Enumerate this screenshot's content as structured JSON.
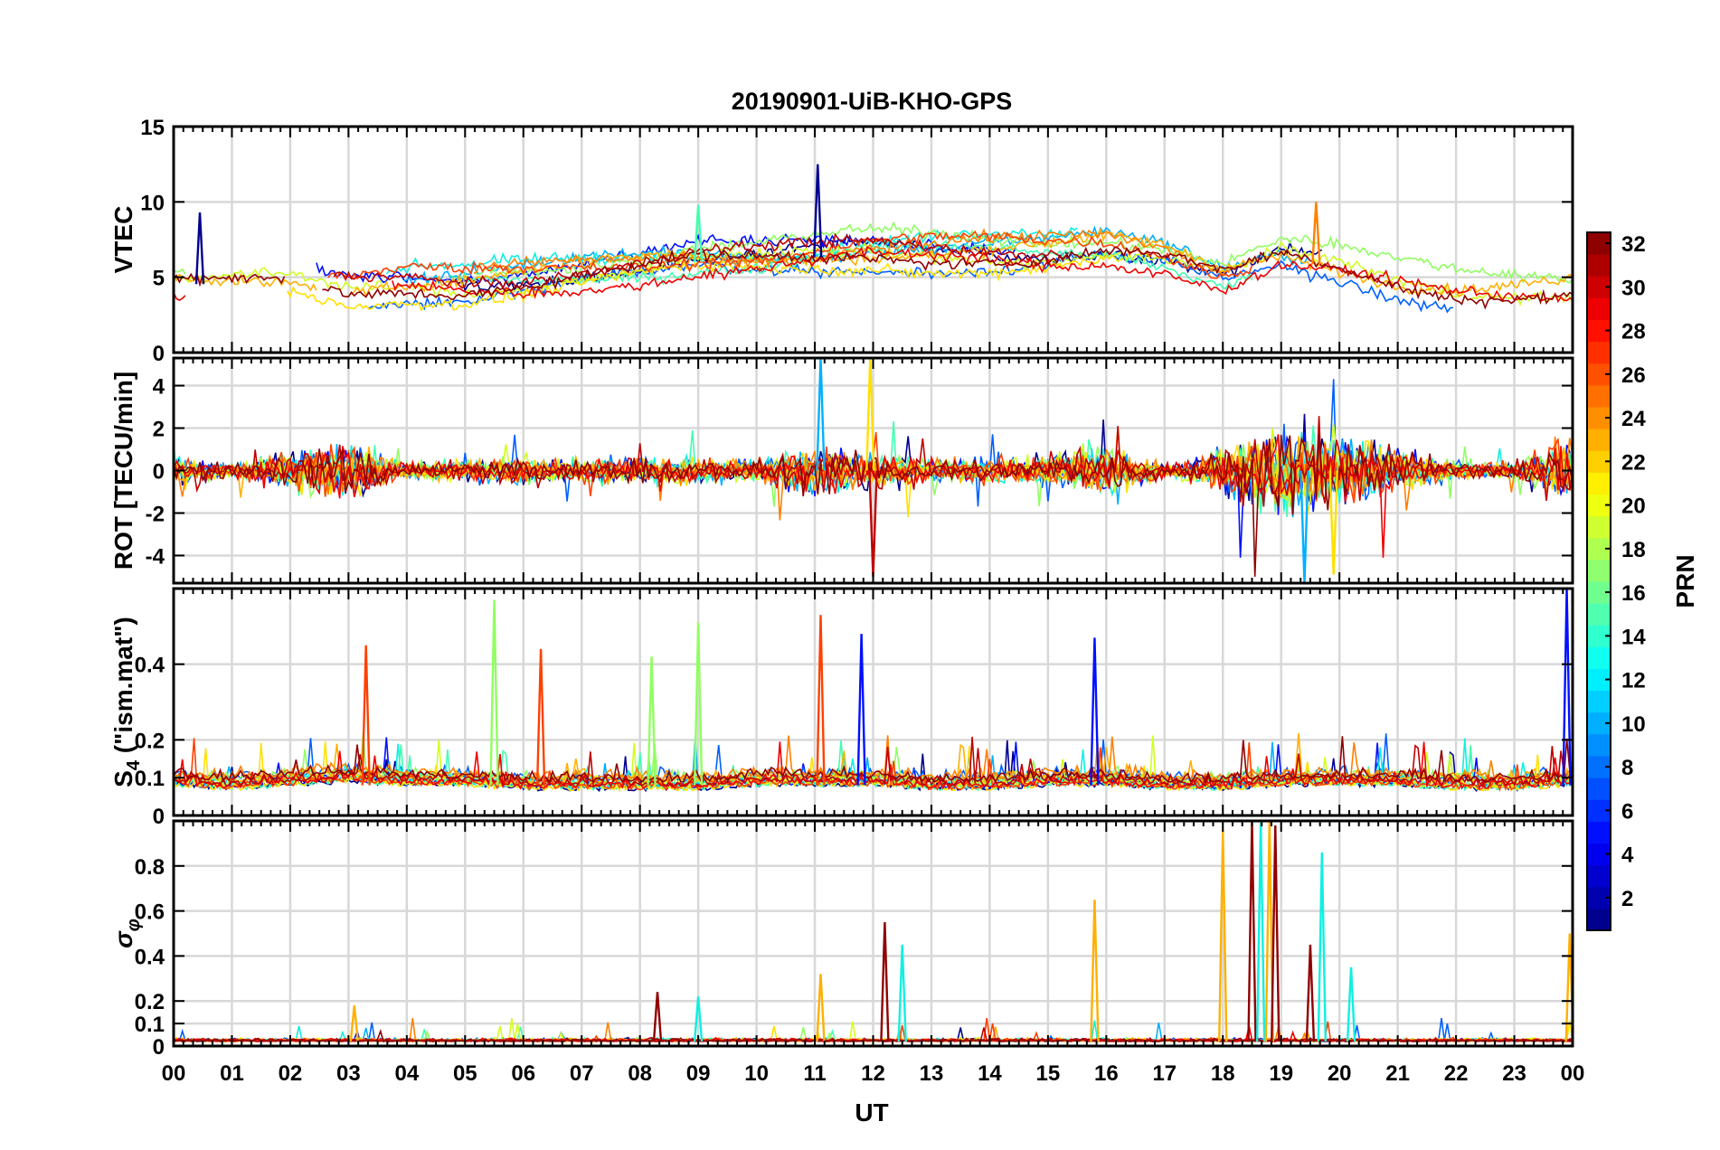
{
  "figure": {
    "title": "20190901-UiB-KHO-GPS",
    "xlabel": "UT"
  },
  "chart_data": {
    "type": "line",
    "title": "20190901-UiB-KHO-GPS",
    "xlabel": "UT",
    "x_ticks": [
      "00",
      "01",
      "02",
      "03",
      "04",
      "05",
      "06",
      "07",
      "08",
      "09",
      "10",
      "11",
      "12",
      "13",
      "14",
      "15",
      "16",
      "17",
      "18",
      "19",
      "20",
      "21",
      "22",
      "23",
      "00"
    ],
    "xlim_hours": [
      0,
      24
    ],
    "panels": [
      {
        "id": "vtec",
        "ylabel": "VTEC",
        "ylim": [
          0,
          15
        ],
        "y_ticks": [
          0,
          5,
          10,
          15
        ],
        "y_tick_labels": [
          "0",
          "5",
          "10",
          "15"
        ],
        "series_summary": {
          "baseline_hourly": [
            4.5,
            4.6,
            4.8,
            4.2,
            4.6,
            4.5,
            4.8,
            5.2,
            5.6,
            6.0,
            6.0,
            6.3,
            6.6,
            6.6,
            6.6,
            6.6,
            6.9,
            6.3,
            5.0,
            6.3,
            5.6,
            4.7,
            4.2,
            4.2,
            4.3
          ],
          "spread": 1.5,
          "peaks": [
            {
              "t": 11.05,
              "v": 12.5
            },
            {
              "t": 9.0,
              "v": 9.8
            },
            {
              "t": 19.6,
              "v": 10.0
            },
            {
              "t": 0.45,
              "v": 9.3
            }
          ]
        }
      },
      {
        "id": "rot",
        "ylabel": "ROT [TECU/min]",
        "ylim": [
          -5.3,
          5.3
        ],
        "y_ticks": [
          -4,
          -2,
          0,
          2,
          4
        ],
        "y_tick_labels": [
          "-4",
          "-2",
          "0",
          "2",
          "4"
        ],
        "series_summary": {
          "activity_hourly": [
            1.0,
            0.6,
            1.5,
            2.2,
            0.6,
            0.9,
            1.0,
            0.8,
            1.0,
            1.0,
            0.8,
            1.9,
            1.3,
            1.0,
            0.9,
            1.0,
            1.9,
            0.5,
            1.6,
            3.5,
            3.0,
            1.8,
            0.6,
            0.6,
            2.5
          ],
          "extremes": [
            {
              "t": 11.1,
              "v": 5.3
            },
            {
              "t": 11.95,
              "v": 5.3
            },
            {
              "t": 12.0,
              "v": -5.0
            },
            {
              "t": 19.4,
              "v": -5.3
            },
            {
              "t": 19.9,
              "v": -4.9
            }
          ]
        }
      },
      {
        "id": "s4",
        "ylabel": "S4 (\"ism.mat\")",
        "ylabel_main": "S",
        "ylabel_sub": "4",
        "ylabel_rest": " (\"ism.mat\")",
        "ylim": [
          0,
          0.6
        ],
        "y_ticks": [
          0,
          0.1,
          0.2,
          0.4
        ],
        "y_tick_labels": [
          "0",
          "0.1",
          "0.2",
          "0.4"
        ],
        "series_summary": {
          "baseline_hourly": [
            0.09,
            0.08,
            0.09,
            0.1,
            0.09,
            0.09,
            0.08,
            0.08,
            0.08,
            0.08,
            0.09,
            0.09,
            0.09,
            0.08,
            0.08,
            0.09,
            0.09,
            0.08,
            0.08,
            0.09,
            0.09,
            0.09,
            0.08,
            0.08,
            0.09
          ],
          "spikes": [
            {
              "t": 5.5,
              "v": 0.57
            },
            {
              "t": 11.1,
              "v": 0.53
            },
            {
              "t": 11.8,
              "v": 0.48
            },
            {
              "t": 8.2,
              "v": 0.42
            },
            {
              "t": 3.3,
              "v": 0.45
            },
            {
              "t": 15.8,
              "v": 0.47
            },
            {
              "t": 9.0,
              "v": 0.51
            },
            {
              "t": 6.3,
              "v": 0.44
            },
            {
              "t": 23.9,
              "v": 0.6
            }
          ]
        }
      },
      {
        "id": "sigma_phi",
        "ylabel": "σφ",
        "ylabel_main": "σ",
        "ylabel_sub": "φ",
        "ylim": [
          0,
          1.0
        ],
        "y_ticks": [
          0,
          0.1,
          0.2,
          0.4,
          0.6,
          0.8
        ],
        "y_tick_labels": [
          "0",
          "0.1",
          "0.2",
          "0.4",
          "0.6",
          "0.8"
        ],
        "series_summary": {
          "baseline": 0.02,
          "spikes": [
            {
              "t": 18.0,
              "v": 0.96
            },
            {
              "t": 18.5,
              "v": 1.0
            },
            {
              "t": 18.65,
              "v": 1.0
            },
            {
              "t": 18.8,
              "v": 1.0
            },
            {
              "t": 18.9,
              "v": 0.98
            },
            {
              "t": 19.7,
              "v": 0.86
            },
            {
              "t": 15.8,
              "v": 0.65
            },
            {
              "t": 12.2,
              "v": 0.55
            },
            {
              "t": 12.5,
              "v": 0.45
            },
            {
              "t": 11.1,
              "v": 0.32
            },
            {
              "t": 19.5,
              "v": 0.45
            },
            {
              "t": 20.2,
              "v": 0.35
            },
            {
              "t": 23.95,
              "v": 0.5
            },
            {
              "t": 8.3,
              "v": 0.24
            },
            {
              "t": 9.0,
              "v": 0.22
            },
            {
              "t": 3.1,
              "v": 0.18
            }
          ]
        }
      }
    ],
    "colorbar": {
      "label": "PRN",
      "min": 1,
      "max": 32,
      "ticks": [
        2,
        4,
        6,
        8,
        10,
        12,
        14,
        16,
        18,
        20,
        22,
        24,
        26,
        28,
        30,
        32
      ],
      "tick_labels": [
        "2",
        "4",
        "6",
        "8",
        "10",
        "12",
        "14",
        "16",
        "18",
        "20",
        "22",
        "24",
        "26",
        "28",
        "30",
        "32"
      ],
      "colormap": "jet"
    },
    "satellites": [
      {
        "prn": 2,
        "color": "#00008f"
      },
      {
        "prn": 4,
        "color": "#0010ff"
      },
      {
        "prn": 6,
        "color": "#0060ff"
      },
      {
        "prn": 8,
        "color": "#00b0ff"
      },
      {
        "prn": 10,
        "color": "#10f0e0"
      },
      {
        "prn": 12,
        "color": "#40ffb0"
      },
      {
        "prn": 14,
        "color": "#90ff60"
      },
      {
        "prn": 16,
        "color": "#d0ff20"
      },
      {
        "prn": 18,
        "color": "#ffe000"
      },
      {
        "prn": 20,
        "color": "#ffb000"
      },
      {
        "prn": 22,
        "color": "#ff8000"
      },
      {
        "prn": 24,
        "color": "#ff4000"
      },
      {
        "prn": 26,
        "color": "#f00000"
      },
      {
        "prn": 28,
        "color": "#c00000"
      },
      {
        "prn": 30,
        "color": "#8f0000"
      }
    ]
  }
}
